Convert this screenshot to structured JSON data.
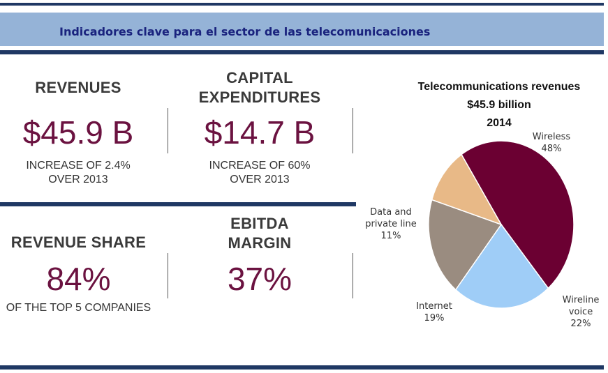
{
  "banner": {
    "title": "Indicadores clave para el sector de las telecomunicaciones"
  },
  "kpis": {
    "revenues": {
      "label": "REVENUES",
      "value": "$45.9 B",
      "sub": [
        "INCREASE OF 2.4%",
        "OVER 2013"
      ]
    },
    "capex": {
      "label": [
        "CAPITAL",
        "EXPENDITURES"
      ],
      "value": "$14.7 B",
      "sub": [
        "INCREASE OF 60%",
        "OVER 2013"
      ]
    },
    "revenue_share": {
      "label": "REVENUE SHARE",
      "value": "84%",
      "sub": "OF THE TOP 5 COMPANIES"
    },
    "ebitda": {
      "label": [
        "EBITDA",
        "MARGIN"
      ],
      "value": "37%"
    }
  },
  "colors": {
    "accent": "#6b1240",
    "banner": "#95b3d7",
    "rule": "#1f3864",
    "title_text": "#1a237e"
  },
  "chart_data": {
    "type": "pie",
    "title": [
      "Telecommunications revenues",
      "$45.9 billion",
      "2014"
    ],
    "slices": [
      {
        "name": "Wireless",
        "label": [
          "Wireless",
          "48%"
        ],
        "value": 48,
        "color": "#6b0032"
      },
      {
        "name": "Wireline voice",
        "label": [
          "Wireline",
          "voice",
          "22%"
        ],
        "value": 22,
        "color": "#9fcdf7"
      },
      {
        "name": "Internet",
        "label": [
          "Internet",
          "19%"
        ],
        "value": 19,
        "color": "#9a8c80"
      },
      {
        "name": "Data and private line",
        "label": [
          "Data and",
          "private line",
          "11%"
        ],
        "value": 11,
        "color": "#e8b987"
      }
    ]
  }
}
